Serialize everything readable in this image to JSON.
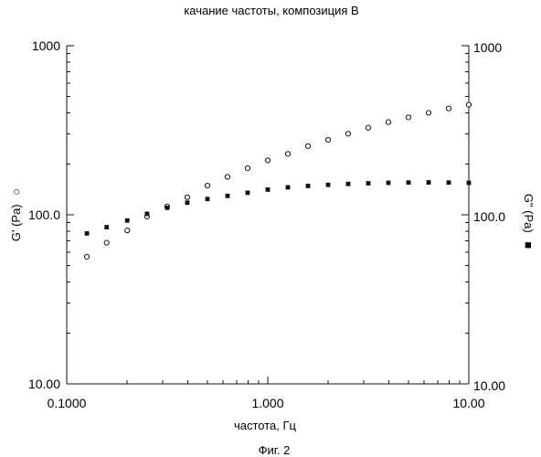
{
  "figure": {
    "title": "качание частоты, композиция B",
    "caption": "Фиг. 2"
  },
  "chart_data": {
    "type": "scatter",
    "title": "качание частоты, композиция B",
    "xlabel": "частота, Гц",
    "ylabel_left": "G' (Pa)",
    "ylabel_right": "G\" (Pa)",
    "left_marker_symbol": "○",
    "right_marker_symbol": "■",
    "x_scale": "log",
    "y_scale": "log",
    "xlim": [
      0.1,
      10.0
    ],
    "ylim": [
      10.0,
      1000.0
    ],
    "x_ticks": [
      0.1,
      1.0,
      10.0
    ],
    "x_tick_labels": [
      "0.1000",
      "1.000",
      "10.00"
    ],
    "y_ticks": [
      10.0,
      100.0,
      1000.0
    ],
    "y_tick_labels_left": [
      "10.00",
      "100.0",
      "1000"
    ],
    "y_tick_labels_right": [
      "10.00",
      "100.0",
      "1000"
    ],
    "grid": false,
    "x": [
      0.126,
      0.158,
      0.2,
      0.251,
      0.316,
      0.398,
      0.501,
      0.631,
      0.794,
      1.0,
      1.259,
      1.585,
      1.995,
      2.512,
      3.162,
      3.981,
      5.012,
      6.31,
      7.943,
      10.0
    ],
    "series": [
      {
        "marker": "open-circle",
        "axis": "left",
        "values": [
          56.5,
          68.4,
          80.8,
          97.6,
          112.0,
          127.0,
          148.7,
          167.6,
          188.4,
          209.9,
          229.2,
          254.9,
          277.5,
          301.4,
          327.2,
          353.0,
          376.6,
          401.0,
          425.4,
          447.8
        ]
      },
      {
        "marker": "filled-square",
        "axis": "right",
        "values": [
          77.6,
          84.5,
          92.5,
          101.3,
          110.0,
          117.9,
          124.0,
          129.4,
          135.0,
          140.9,
          145.3,
          148.1,
          150.4,
          152.2,
          153.6,
          154.6,
          155.2,
          155.5,
          155.1,
          154.5
        ]
      }
    ]
  }
}
